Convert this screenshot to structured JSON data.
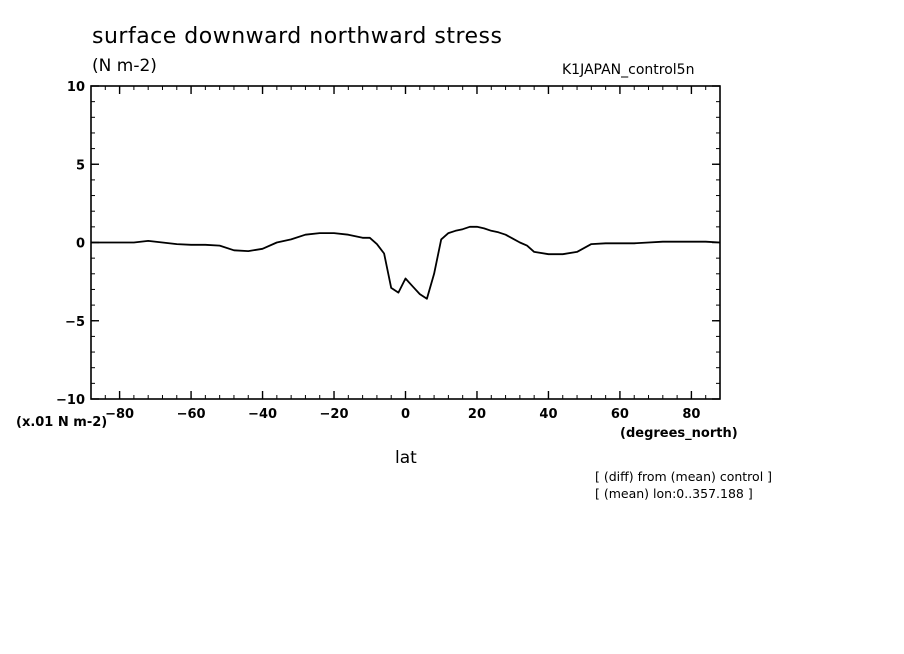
{
  "header": {
    "title": "surface downward northward stress",
    "subtitle": "(N m-2)",
    "run_id": "K1JAPAN_control5n"
  },
  "axes": {
    "y_unit": "(x.01 N m-2)",
    "x_unit": "(degrees_north)",
    "x_label": "lat"
  },
  "notes": {
    "line1": "[ (diff) from (mean) control ]",
    "line2": "[ (mean) lon:0..357.188 ]"
  },
  "chart_data": {
    "type": "line",
    "xlim": [
      -88,
      88
    ],
    "ylim": [
      -10,
      10
    ],
    "xticks": [
      -80,
      -60,
      -40,
      -20,
      0,
      20,
      40,
      60,
      80
    ],
    "xtick_labels": [
      "−80",
      "−60",
      "−40",
      "−20",
      "0",
      "20",
      "40",
      "60",
      "80"
    ],
    "yticks": [
      -10,
      -5,
      0,
      5,
      10
    ],
    "ytick_labels": [
      "−10",
      "−5",
      "0",
      "5",
      "10"
    ],
    "x_minor_step": 4,
    "y_minor_step": 1,
    "grid": false,
    "series": [
      {
        "x": [
          -88,
          -80,
          -76,
          -72,
          -68,
          -64,
          -60,
          -56,
          -52,
          -48,
          -44,
          -40,
          -36,
          -32,
          -28,
          -24,
          -20,
          -16,
          -12,
          -10,
          -8,
          -6,
          -4,
          -2,
          0,
          2,
          4,
          6,
          8,
          10,
          12,
          14,
          16,
          18,
          20,
          22,
          24,
          26,
          28,
          30,
          32,
          34,
          36,
          40,
          44,
          48,
          52,
          56,
          60,
          64,
          68,
          72,
          76,
          80,
          84,
          88
        ],
        "y": [
          0,
          0,
          0,
          0.1,
          0,
          -0.1,
          -0.15,
          -0.15,
          -0.2,
          -0.5,
          -0.55,
          -0.4,
          0,
          0.2,
          0.5,
          0.6,
          0.6,
          0.5,
          0.3,
          0.3,
          -0.1,
          -0.7,
          -2.9,
          -3.2,
          -2.3,
          -2.8,
          -3.3,
          -3.6,
          -2.0,
          0.2,
          0.6,
          0.75,
          0.85,
          1.0,
          1.0,
          0.9,
          0.75,
          0.65,
          0.5,
          0.25,
          0,
          -0.2,
          -0.6,
          -0.75,
          -0.75,
          -0.6,
          -0.1,
          -0.05,
          -0.05,
          -0.05,
          0,
          0.05,
          0.05,
          0.05,
          0.05,
          0
        ]
      }
    ]
  }
}
